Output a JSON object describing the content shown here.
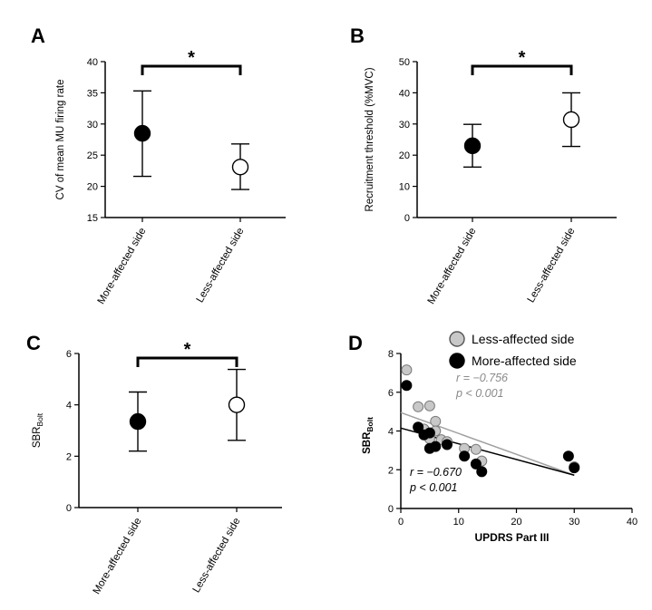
{
  "chart_data": [
    {
      "panel": "A",
      "type": "scatter",
      "ylabel": "CV of mean MU firing rate",
      "ylim": [
        15,
        40
      ],
      "yticks": [
        15,
        20,
        25,
        30,
        35,
        40
      ],
      "categories": [
        "More-affected side",
        "Less-affected side"
      ],
      "points": [
        {
          "category": "More-affected side",
          "mean": 28.5,
          "low": 21.6,
          "high": 35.3,
          "fill": "#000000"
        },
        {
          "category": "Less-affected side",
          "mean": 23.1,
          "low": 19.5,
          "high": 26.8,
          "fill": "#ffffff"
        }
      ],
      "significance": "*"
    },
    {
      "panel": "B",
      "type": "scatter",
      "ylabel": "Recruitment threshold (%MVC)",
      "ylim": [
        0,
        50
      ],
      "yticks": [
        0,
        10,
        20,
        30,
        40,
        50
      ],
      "categories": [
        "More-affected side",
        "Less-affected side"
      ],
      "points": [
        {
          "category": "More-affected side",
          "mean": 23.0,
          "low": 16.2,
          "high": 29.9,
          "fill": "#000000"
        },
        {
          "category": "Less-affected side",
          "mean": 31.4,
          "low": 22.8,
          "high": 40.0,
          "fill": "#ffffff"
        }
      ],
      "significance": "*"
    },
    {
      "panel": "C",
      "type": "scatter",
      "ylabel_main": "SBR",
      "ylabel_sub": "Bolt",
      "ylim": [
        0,
        6
      ],
      "yticks": [
        0,
        2,
        4,
        6
      ],
      "categories": [
        "More-affected side",
        "Less-affected side"
      ],
      "points": [
        {
          "category": "More-affected side",
          "mean": 3.35,
          "low": 2.2,
          "high": 4.5,
          "fill": "#000000"
        },
        {
          "category": "Less-affected side",
          "mean": 4.0,
          "low": 2.62,
          "high": 5.38,
          "fill": "#ffffff"
        }
      ],
      "significance": "*"
    },
    {
      "panel": "D",
      "type": "scatter",
      "xlabel": "UPDRS Part III",
      "ylabel_main": "SBR",
      "ylabel_sub": "Bolt",
      "xlim": [
        0,
        40
      ],
      "ylim": [
        0,
        8
      ],
      "xticks": [
        0,
        10,
        20,
        30,
        40
      ],
      "yticks": [
        0,
        2,
        4,
        6,
        8
      ],
      "series": [
        {
          "name": "Less-affected side",
          "fill": "#c8c8c8",
          "line_color": "#a0a0a0",
          "fit": [
            [
              0,
              4.95
            ],
            [
              30,
              1.72
            ]
          ],
          "r_text": "r = −0.756",
          "p_text": "p < 0.001",
          "points": [
            [
              1,
              7.15
            ],
            [
              3,
              5.25
            ],
            [
              5,
              5.3
            ],
            [
              4,
              4.1
            ],
            [
              6,
              4.5
            ],
            [
              6,
              4.0
            ],
            [
              5,
              3.6
            ],
            [
              7,
              3.55
            ],
            [
              8,
              3.45
            ],
            [
              11,
              3.1
            ],
            [
              13,
              3.05
            ],
            [
              14,
              2.45
            ],
            [
              30,
              2.15
            ]
          ]
        },
        {
          "name": "More-affected side",
          "fill": "#000000",
          "line_color": "#000000",
          "fit": [
            [
              0,
              4.15
            ],
            [
              30,
              1.72
            ]
          ],
          "r_text": "r = −0.670",
          "p_text": "p < 0.001",
          "points": [
            [
              1,
              6.35
            ],
            [
              3,
              4.2
            ],
            [
              4,
              3.8
            ],
            [
              5,
              3.9
            ],
            [
              5,
              3.1
            ],
            [
              6,
              3.2
            ],
            [
              8,
              3.3
            ],
            [
              11,
              2.7
            ],
            [
              13,
              2.3
            ],
            [
              14,
              1.9
            ],
            [
              29,
              2.7
            ],
            [
              30,
              2.1
            ]
          ]
        }
      ]
    }
  ]
}
